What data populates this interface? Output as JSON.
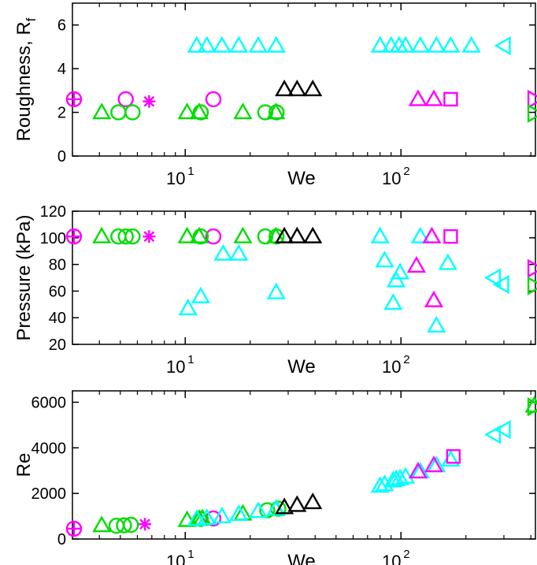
{
  "chart_data": [
    {
      "type": "scatter",
      "xlabel": "We",
      "ylabel": "Roughness, R",
      "ylabel_subscript": "f",
      "xscale": "log",
      "xlim": [
        3,
        420
      ],
      "ylim": [
        0,
        7
      ],
      "xticks": [
        {
          "value": 10,
          "base": "10",
          "exp": "1"
        },
        {
          "value": 100,
          "base": "10",
          "exp": "2"
        }
      ],
      "yticks": [
        0,
        2,
        4,
        6
      ],
      "grid": false,
      "series": [
        {
          "marker": "circle",
          "color": "#ff00ff",
          "points": [
            [
              3.05,
              2.6
            ],
            [
              5.3,
              2.6
            ],
            [
              13.5,
              2.6
            ]
          ]
        },
        {
          "marker": "plus",
          "color": "#ff00ff",
          "points": [
            [
              3.05,
              2.6
            ]
          ]
        },
        {
          "marker": "asterisk",
          "color": "#ff00ff",
          "points": [
            [
              6.8,
              2.5
            ]
          ]
        },
        {
          "marker": "circle",
          "color": "#00dd00",
          "points": [
            [
              4.9,
              2.0
            ],
            [
              5.7,
              2.0
            ],
            [
              11.8,
              2.0
            ],
            [
              23.5,
              2.0
            ],
            [
              26.5,
              2.0
            ]
          ]
        },
        {
          "marker": "triangle-up",
          "color": "#00dd00",
          "points": [
            [
              4.1,
              2.0
            ],
            [
              10.2,
              2.0
            ],
            [
              11.6,
              2.0
            ],
            [
              18.5,
              2.0
            ],
            [
              26.3,
              2.0
            ]
          ]
        },
        {
          "marker": "triangle-up",
          "color": "#00ffff",
          "points": [
            [
              11.3,
              5.05
            ],
            [
              12.6,
              5.05
            ],
            [
              14.8,
              5.05
            ],
            [
              17.7,
              5.05
            ],
            [
              21.8,
              5.05
            ],
            [
              26.4,
              5.05
            ],
            [
              80,
              5.05
            ],
            [
              90,
              5.05
            ],
            [
              98,
              5.05
            ],
            [
              105,
              5.05
            ],
            [
              123,
              5.05
            ],
            [
              146,
              5.05
            ],
            [
              170,
              5.05
            ],
            [
              212,
              5.05
            ]
          ]
        },
        {
          "marker": "triangle-left",
          "color": "#00ffff",
          "points": [
            [
              300,
              5.05
            ]
          ]
        },
        {
          "marker": "triangle-up",
          "color": "#000000",
          "points": [
            [
              28.8,
              3.05
            ],
            [
              33,
              3.05
            ],
            [
              39,
              3.05
            ]
          ]
        },
        {
          "marker": "triangle-up",
          "color": "#ff00ff",
          "points": [
            [
              120,
              2.6
            ],
            [
              142,
              2.6
            ]
          ]
        },
        {
          "marker": "square",
          "color": "#ff00ff",
          "points": [
            [
              170,
              2.6
            ]
          ]
        },
        {
          "marker": "triangle-right",
          "color": "#ff00ff",
          "points": [
            [
              415,
              2.6
            ]
          ]
        },
        {
          "marker": "triangle-right",
          "color": "#00dd00",
          "points": [
            [
              415,
              1.95
            ]
          ]
        }
      ]
    },
    {
      "type": "scatter",
      "xlabel": "We",
      "ylabel": "Pressure (kPa)",
      "xscale": "log",
      "xlim": [
        3,
        420
      ],
      "ylim": [
        20,
        120
      ],
      "xticks": [
        {
          "value": 10,
          "base": "10",
          "exp": "1"
        },
        {
          "value": 100,
          "base": "10",
          "exp": "2"
        }
      ],
      "yticks": [
        20,
        40,
        60,
        80,
        100,
        120
      ],
      "grid": false,
      "series": [
        {
          "marker": "circle",
          "color": "#ff00ff",
          "points": [
            [
              3.05,
              101
            ],
            [
              13.5,
              101
            ]
          ]
        },
        {
          "marker": "plus",
          "color": "#ff00ff",
          "points": [
            [
              3.05,
              101
            ]
          ]
        },
        {
          "marker": "asterisk",
          "color": "#ff00ff",
          "points": [
            [
              6.8,
              101
            ]
          ]
        },
        {
          "marker": "circle",
          "color": "#00dd00",
          "points": [
            [
              4.9,
              101
            ],
            [
              5.3,
              101
            ],
            [
              5.7,
              101
            ],
            [
              11.8,
              101
            ],
            [
              23.5,
              101
            ],
            [
              26.5,
              101
            ]
          ]
        },
        {
          "marker": "triangle-up",
          "color": "#00dd00",
          "points": [
            [
              4.1,
              101
            ],
            [
              10.2,
              101
            ],
            [
              11.6,
              101
            ],
            [
              18.5,
              101
            ],
            [
              26.3,
              101
            ]
          ]
        },
        {
          "marker": "triangle-up",
          "color": "#00ffff",
          "points": [
            [
              10.3,
              47
            ],
            [
              11.8,
              56
            ],
            [
              15,
              88
            ],
            [
              17.7,
              88
            ],
            [
              26.4,
              59
            ],
            [
              80,
              101
            ],
            [
              84,
              83
            ],
            [
              92,
              51
            ],
            [
              95,
              68
            ],
            [
              99,
              74
            ],
            [
              123,
              101
            ],
            [
              146,
              34
            ],
            [
              165,
              81
            ]
          ]
        },
        {
          "marker": "triangle-left",
          "color": "#00ffff",
          "points": [
            [
              270,
              70
            ],
            [
              295,
              65
            ]
          ]
        },
        {
          "marker": "triangle-up",
          "color": "#000000",
          "points": [
            [
              28.8,
              101
            ],
            [
              33,
              101
            ],
            [
              39,
              101
            ]
          ]
        },
        {
          "marker": "triangle-up",
          "color": "#ff00ff",
          "points": [
            [
              118,
              79
            ],
            [
              139,
              101
            ],
            [
              142,
              53
            ]
          ]
        },
        {
          "marker": "square",
          "color": "#ff00ff",
          "points": [
            [
              170,
              101
            ]
          ]
        },
        {
          "marker": "triangle-right",
          "color": "#ff00ff",
          "points": [
            [
              415,
              77
            ]
          ]
        },
        {
          "marker": "triangle-right",
          "color": "#00dd00",
          "points": [
            [
              415,
              64
            ]
          ]
        }
      ]
    },
    {
      "type": "scatter",
      "xlabel": "We",
      "ylabel": "Re",
      "xscale": "log",
      "xlim": [
        3,
        420
      ],
      "ylim": [
        0,
        6500
      ],
      "xticks": [
        {
          "value": 10,
          "base": "10",
          "exp": "1"
        },
        {
          "value": 100,
          "base": "10",
          "exp": "2"
        }
      ],
      "yticks": [
        0,
        2000,
        4000,
        6000
      ],
      "grid": false,
      "series": [
        {
          "marker": "circle",
          "color": "#ff00ff",
          "points": [
            [
              3.05,
              450
            ],
            [
              13.5,
              900
            ]
          ]
        },
        {
          "marker": "plus",
          "color": "#ff00ff",
          "points": [
            [
              3.05,
              450
            ]
          ]
        },
        {
          "marker": "asterisk",
          "color": "#ff00ff",
          "points": [
            [
              6.5,
              650
            ]
          ]
        },
        {
          "marker": "circle",
          "color": "#00dd00",
          "points": [
            [
              4.8,
              580
            ],
            [
              5.2,
              600
            ],
            [
              5.6,
              620
            ],
            [
              11.8,
              880
            ],
            [
              24,
              1260
            ],
            [
              27,
              1330
            ]
          ]
        },
        {
          "marker": "triangle-up",
          "color": "#00dd00",
          "points": [
            [
              4.1,
              600
            ],
            [
              10.2,
              830
            ],
            [
              11.6,
              880
            ],
            [
              12,
              900
            ],
            [
              18.5,
              1110
            ],
            [
              26.3,
              1310
            ],
            [
              415,
              5850
            ]
          ]
        },
        {
          "marker": "triangle-up",
          "color": "#00ffff",
          "points": [
            [
              11.3,
              870
            ],
            [
              12.6,
              920
            ],
            [
              14.8,
              990
            ],
            [
              17.7,
              1090
            ],
            [
              21.8,
              1220
            ],
            [
              26.4,
              1330
            ],
            [
              80,
              2330
            ],
            [
              84,
              2400
            ],
            [
              92,
              2570
            ],
            [
              95,
              2620
            ],
            [
              99,
              2660
            ],
            [
              105,
              2730
            ],
            [
              123,
              2960
            ],
            [
              146,
              3230
            ],
            [
              170,
              3480
            ]
          ]
        },
        {
          "marker": "triangle-left",
          "color": "#00ffff",
          "points": [
            [
              270,
              4580
            ],
            [
              300,
              4800
            ]
          ]
        },
        {
          "marker": "triangle-up",
          "color": "#000000",
          "points": [
            [
              28.8,
              1390
            ],
            [
              33,
              1490
            ],
            [
              39,
              1610
            ]
          ]
        },
        {
          "marker": "triangle-up",
          "color": "#ff00ff",
          "points": [
            [
              120,
              2960
            ],
            [
              142,
              3230
            ]
          ]
        },
        {
          "marker": "square",
          "color": "#ff00ff",
          "points": [
            [
              175,
              3620
            ]
          ]
        },
        {
          "marker": "triangle-right",
          "color": "#00dd00",
          "points": [
            [
              415,
              5800
            ]
          ]
        }
      ]
    }
  ]
}
